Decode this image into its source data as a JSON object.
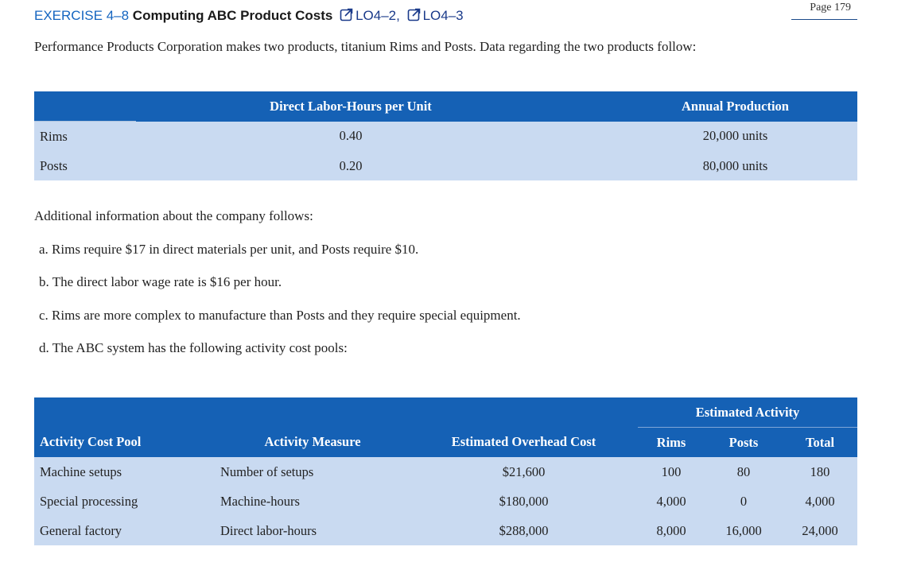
{
  "page": {
    "page_label": "Page 179"
  },
  "heading": {
    "exercise_num": "EXERCISE 4–8",
    "title": "Computing ABC Product Costs",
    "lo1": "LO4–2,",
    "lo2": "LO4–3"
  },
  "intro": "Performance Products Corporation makes two products, titanium Rims and Posts. Data regarding the two products follow:",
  "table1": {
    "headers": [
      "",
      "Direct Labor-Hours per Unit",
      "Annual Production"
    ],
    "rows": [
      [
        "Rims",
        "0.40",
        "20,000 units"
      ],
      [
        "Posts",
        "0.20",
        "80,000 units"
      ]
    ]
  },
  "additional_info": "Additional information about the company follows:",
  "items": [
    "a. Rims require $17 in direct materials per unit, and Posts require $10.",
    "b. The direct labor wage rate is $16 per hour.",
    "c. Rims are more complex to manufacture than Posts and they require special equipment.",
    "d. The ABC system has the following activity cost pools:"
  ],
  "table2": {
    "group_header": "Estimated Activity",
    "headers": [
      "Activity Cost Pool",
      "Activity Measure",
      "Estimated Overhead Cost",
      "Rims",
      "Posts",
      "Total"
    ],
    "rows": [
      [
        "Machine setups",
        "Number of setups",
        "$21,600",
        "100",
        "80",
        "180"
      ],
      [
        "Special processing",
        "Machine-hours",
        "$180,000",
        "4,000",
        "0",
        "4,000"
      ],
      [
        "General factory",
        "Direct labor-hours",
        "$288,000",
        "8,000",
        "16,000",
        "24,000"
      ]
    ]
  },
  "colors": {
    "header_blue": "#1561b5",
    "row_fill": "#c9daf1",
    "link_blue": "#1565c0"
  },
  "icons": {
    "lo_link": "external-link-icon"
  }
}
